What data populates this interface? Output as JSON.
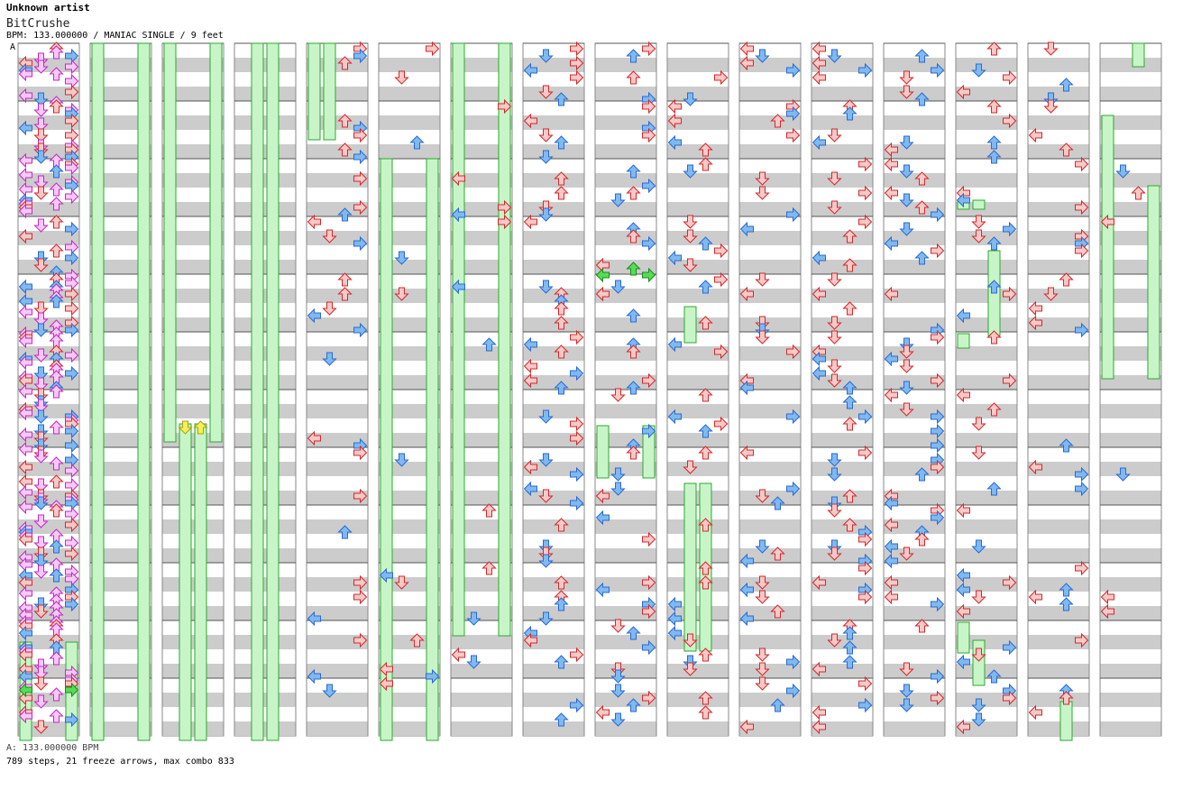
{
  "header": {
    "artist": "Unknown artist",
    "title": "BitCrushe",
    "info": "BPM: 133.000000 / MANIAC SINGLE / 9 feet"
  },
  "marker": "A",
  "footer": {
    "bpm_line": "A: 133.000000 BPM",
    "stats_line": "789 steps, 21 freeze arrows, max combo 833"
  },
  "chart": {
    "columns": 16,
    "measures_per_column": 12,
    "colors": {
      "stripe": "#cccccc",
      "lane_bg": "#ffffff",
      "border": "#888888",
      "left_arrow": "#f9c8c8",
      "down_arrow": "#7fb9f0",
      "up_arrow": "#f9c8c8",
      "right_arrow": "#f9c8c8",
      "quarter_note": "#f9c8c8",
      "eighth_note": "#7fb9f0",
      "sixteenth_note": "#f9c8f9",
      "freeze": "#c8f5c8",
      "freeze_border": "#2ea82e",
      "freeze_head": "#55dd55",
      "shock": "#f5f155"
    }
  }
}
